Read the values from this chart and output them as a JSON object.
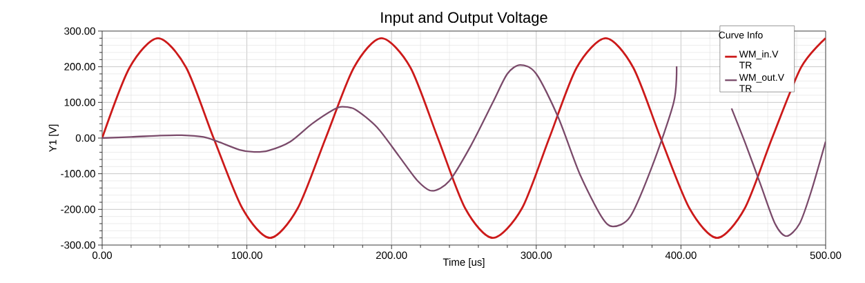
{
  "chart_data": {
    "type": "line",
    "title": "Input and Output Voltage",
    "xlabel": "Time [us]",
    "ylabel": "Y1 [V]",
    "legend_title": "Curve Info",
    "xlim": [
      0,
      500
    ],
    "ylim": [
      -300,
      300
    ],
    "xticks": [
      {
        "value": 0,
        "label": "0.00"
      },
      {
        "value": 100,
        "label": "100.00"
      },
      {
        "value": 200,
        "label": "200.00"
      },
      {
        "value": 300,
        "label": "300.00"
      },
      {
        "value": 400,
        "label": "400.00"
      },
      {
        "value": 500,
        "label": "500.00"
      }
    ],
    "yticks": [
      {
        "value": -300,
        "label": "-300.00"
      },
      {
        "value": -200,
        "label": "-200.00"
      },
      {
        "value": -100,
        "label": "-100.00"
      },
      {
        "value": 0,
        "label": "0.00"
      },
      {
        "value": 100,
        "label": "100.00"
      },
      {
        "value": 200,
        "label": "200.00"
      },
      {
        "value": 300,
        "label": "300.00"
      }
    ],
    "grid": true,
    "legend": "top right",
    "marker": "none",
    "line_style": "solid",
    "series": [
      {
        "name": "WM_in.V TR",
        "color": "#cc1a1a",
        "x": [
          0,
          19,
          38.6,
          58,
          77,
          97,
          116,
          135,
          154.5,
          174,
          193,
          213,
          232,
          251,
          270,
          290,
          309,
          328,
          348,
          367,
          386,
          406,
          425,
          444,
          463,
          483,
          500
        ],
        "values": [
          0,
          198,
          280,
          198,
          0,
          -198,
          -280,
          -198,
          0,
          198,
          280,
          198,
          0,
          -198,
          -280,
          -198,
          0,
          198,
          280,
          198,
          0,
          -198,
          -280,
          -198,
          0,
          198,
          280
        ]
      },
      {
        "name": "WM_out.V TR",
        "color": "#7a4a6a",
        "x": [
          0,
          20,
          40,
          55,
          70,
          80,
          95,
          105,
          115,
          130,
          145,
          160,
          166,
          175,
          190,
          205,
          218,
          228,
          240,
          255,
          270,
          280,
          289,
          300,
          315,
          330,
          345,
          353,
          365,
          380,
          395,
          397,
          405,
          415,
          425,
          435,
          445,
          455,
          465,
          473,
          482,
          490,
          500
        ],
        "values": [
          0,
          3,
          7,
          8,
          3,
          -10,
          -33,
          -39,
          -35,
          -10,
          40,
          80,
          88,
          80,
          30,
          -50,
          -120,
          -148,
          -120,
          -20,
          100,
          180,
          205,
          180,
          60,
          -100,
          -220,
          -248,
          -220,
          -80,
          100,
          201,
          null,
          null,
          null,
          83,
          -20,
          -130,
          -240,
          -275,
          -240,
          -150,
          -10
        ]
      }
    ]
  }
}
